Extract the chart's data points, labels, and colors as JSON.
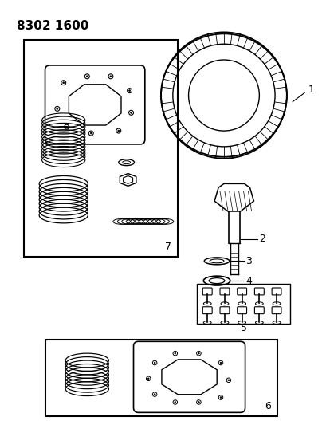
{
  "title": "8302 1600",
  "bg_color": "#ffffff",
  "line_color": "#000000",
  "title_fontsize": 11,
  "label_fontsize": 9,
  "fig_width": 4.1,
  "fig_height": 5.33,
  "dpi": 100
}
